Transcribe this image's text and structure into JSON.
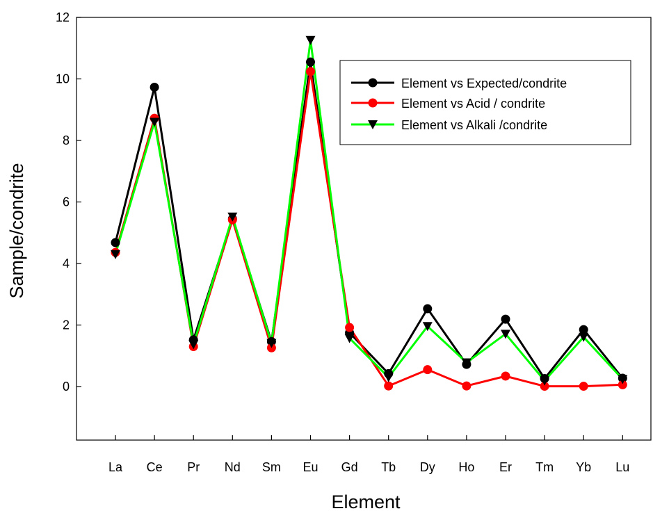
{
  "chart_data": {
    "type": "line",
    "xlabel": "Element",
    "ylabel": "Sample/condrite",
    "categories": [
      "La",
      "Ce",
      "Pr",
      "Nd",
      "Sm",
      "Eu",
      "Gd",
      "Tb",
      "Dy",
      "Ho",
      "Er",
      "Tm",
      "Yb",
      "Lu"
    ],
    "ylim": [
      -1.75,
      12
    ],
    "yticks": [
      0,
      2,
      4,
      6,
      8,
      10,
      12
    ],
    "grid": false,
    "legend_position": "top-right",
    "series": [
      {
        "name": "Element vs Expected/condrite",
        "color": "#000000",
        "marker": "circle",
        "values": [
          4.68,
          9.73,
          1.52,
          5.45,
          1.46,
          10.55,
          1.75,
          0.42,
          2.53,
          0.72,
          2.19,
          0.26,
          1.85,
          0.27
        ]
      },
      {
        "name": "Element vs Acid / condrite",
        "color": "#ff0000",
        "marker": "circle",
        "values": [
          4.36,
          8.72,
          1.3,
          5.42,
          1.26,
          10.24,
          1.92,
          0.02,
          0.55,
          0.02,
          0.34,
          0.01,
          0.01,
          0.06
        ]
      },
      {
        "name": "Element vs Alkali /condrite",
        "color": "#00ff00",
        "marker": "triangle-down",
        "values": [
          4.3,
          8.6,
          1.37,
          5.52,
          1.41,
          11.26,
          1.57,
          0.3,
          1.96,
          0.78,
          1.71,
          0.19,
          1.61,
          0.24
        ]
      }
    ]
  }
}
